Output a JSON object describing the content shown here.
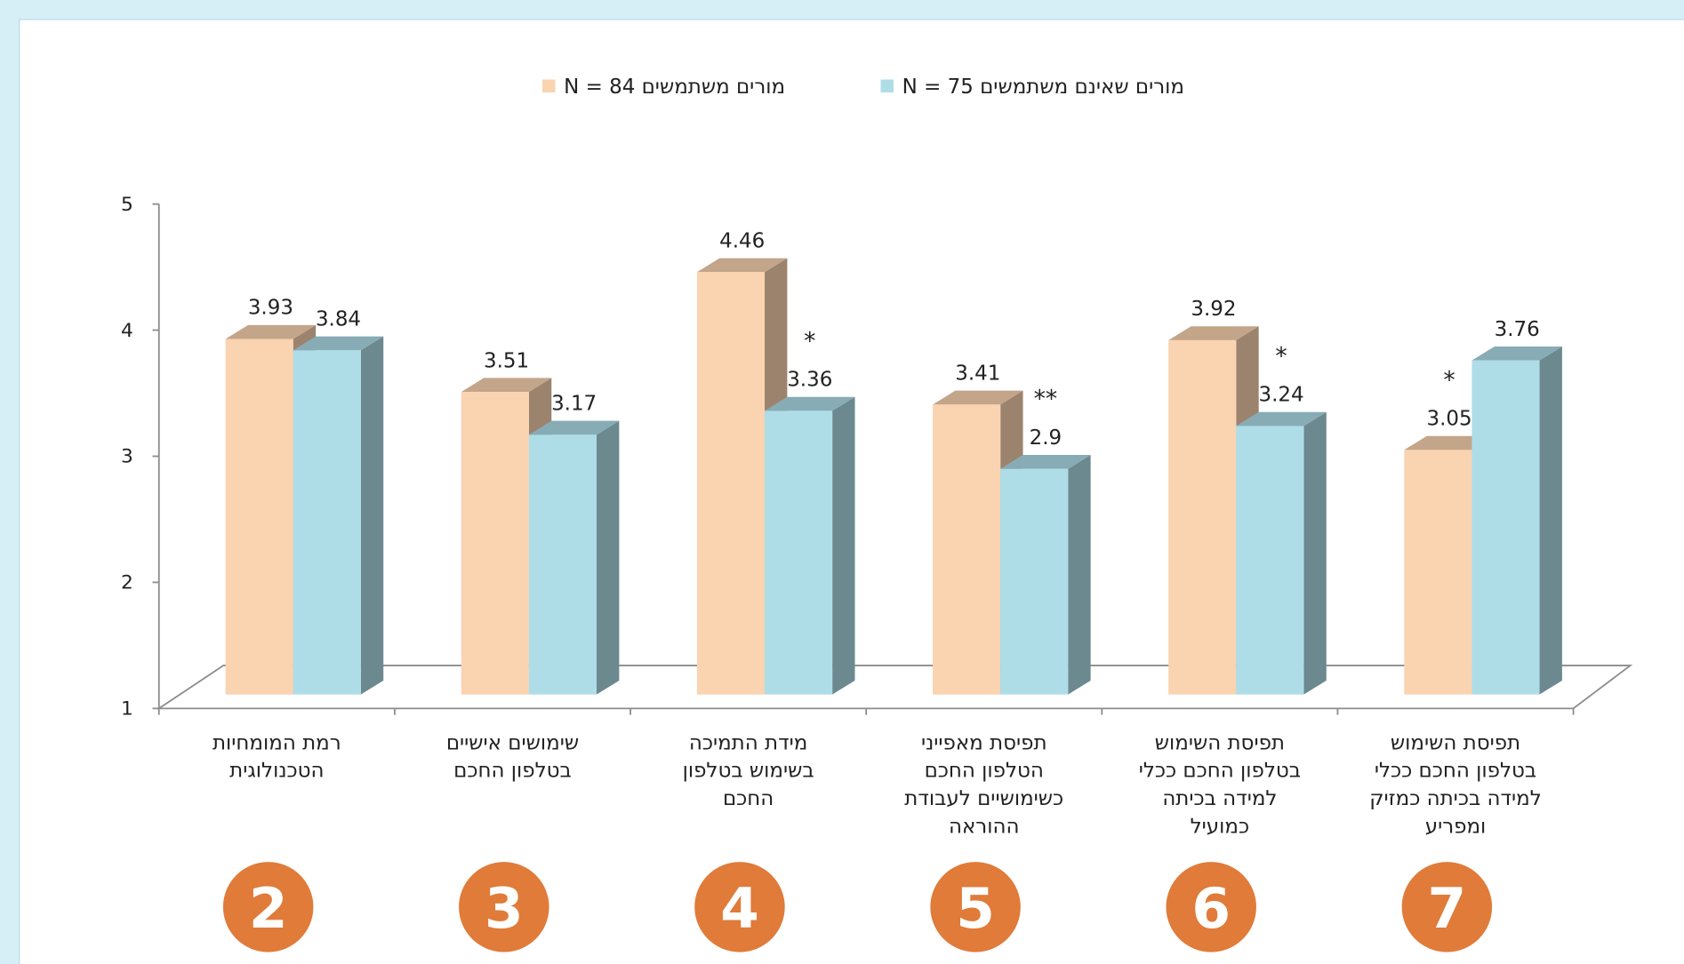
{
  "chart_data": {
    "type": "bar3d",
    "categories": [
      [
        "רמת המומחיות",
        "הטכנולוגית"
      ],
      [
        "שימושים אישיים",
        "בטלפון החכם"
      ],
      [
        "מידת התמיכה",
        "בשימוש בטלפון",
        "החכם"
      ],
      [
        "תפיסת מאפייני",
        "הטלפון החכם",
        "כשימושיים לעבודת",
        "ההוראה"
      ],
      [
        "תפיסת השימוש",
        "בטלפון החכם ככלי",
        "למידה בכיתה",
        "כמועיל"
      ],
      [
        "תפיסת השימוש",
        "בטלפון החכם ככלי",
        "למידה בכיתה כמזיק",
        "ומפריע"
      ]
    ],
    "series": [
      {
        "name": "מורים משתמשים  N = 84",
        "color": "#fad3b1",
        "values": [
          3.93,
          3.51,
          4.46,
          3.41,
          3.92,
          3.05
        ]
      },
      {
        "name": "מורים שאינם משתמשים  N = 75",
        "color": "#aedde8",
        "values": [
          3.84,
          3.17,
          3.36,
          2.9,
          3.24,
          3.76
        ]
      }
    ],
    "ylim": [
      1,
      5
    ],
    "yticks": [
      1,
      2,
      3,
      4,
      5
    ],
    "significance": [
      {
        "category": 2,
        "series": 1,
        "text": "*"
      },
      {
        "category": 3,
        "series": 1,
        "text": "**"
      },
      {
        "category": 4,
        "series": 1,
        "text": "*"
      },
      {
        "category": 5,
        "series": 0,
        "text": "*"
      }
    ],
    "badges": [
      "2",
      "3",
      "4",
      "5",
      "6",
      "7"
    ],
    "badge_color": "#e07b39"
  }
}
